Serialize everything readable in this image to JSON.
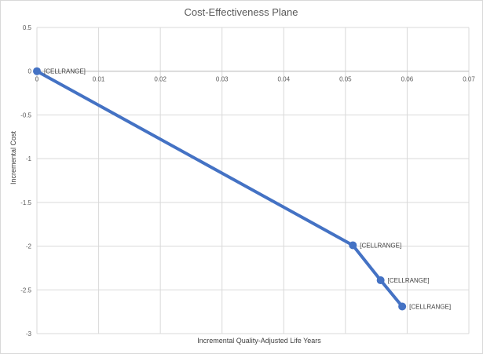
{
  "chart_data": {
    "type": "line",
    "title": "Cost-Effectiveness Plane",
    "xlabel": "Incremental Quality-Adjusted Life Years",
    "ylabel": "Incremental Cost",
    "xlim": [
      0,
      0.07
    ],
    "ylim": [
      -3,
      0.5
    ],
    "x_ticks": [
      "0",
      "0.01",
      "0.02",
      "0.03",
      "0.04",
      "0.05",
      "0.06",
      "0.07"
    ],
    "x_tick_values": [
      0,
      0.01,
      0.02,
      0.03,
      0.04,
      0.05,
      0.06,
      0.07
    ],
    "y_ticks": [
      "0.5",
      "0",
      "-0.5",
      "-1",
      "-1.5",
      "-2",
      "-2.5",
      "-3"
    ],
    "y_tick_values": [
      0.5,
      0,
      -0.5,
      -1,
      -1.5,
      -2,
      -2.5,
      -3
    ],
    "grid": true,
    "series": [
      {
        "color": "#4472c4",
        "points": [
          {
            "x": 0,
            "y": 0,
            "label": "[CELLRANGE]"
          },
          {
            "x": 0.0512,
            "y": -1.99,
            "label": "[CELLRANGE]"
          },
          {
            "x": 0.0557,
            "y": -2.39,
            "label": "[CELLRANGE]"
          },
          {
            "x": 0.0592,
            "y": -2.69,
            "label": "[CELLRANGE]"
          }
        ]
      }
    ]
  }
}
